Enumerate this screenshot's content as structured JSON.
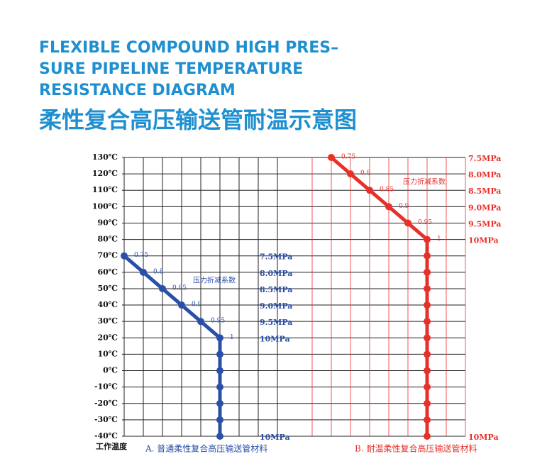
{
  "title_en": [
    "FLEXIBLE COMPOUND HIGH PRES–",
    "SURE PIPELINE TEMPERATURE",
    "RESISTANCE DIAGRAM"
  ],
  "title_cn": "柔性复合高压输送管耐温示意图",
  "chart_data": [
    {
      "type": "line",
      "color": "#2a4fa8",
      "ylabel": "工作温度",
      "caption": "A. 普通柔性复合高压输送管材料",
      "annotation": "压力折减系数",
      "ylim": [
        -40,
        130
      ],
      "xlim": [
        0,
        8
      ],
      "xticks": [
        0,
        1,
        2,
        3,
        4,
        5,
        6,
        7,
        8
      ],
      "yticks": [
        {
          "value": 130,
          "label": "130℃"
        },
        {
          "value": 120,
          "label": "120℃"
        },
        {
          "value": 110,
          "label": "110℃"
        },
        {
          "value": 100,
          "label": "100℃"
        },
        {
          "value": 90,
          "label": "90℃"
        },
        {
          "value": 80,
          "label": "80℃"
        },
        {
          "value": 70,
          "label": "70℃"
        },
        {
          "value": 60,
          "label": "60℃"
        },
        {
          "value": 50,
          "label": "50℃"
        },
        {
          "value": 40,
          "label": "40℃"
        },
        {
          "value": 30,
          "label": "30℃"
        },
        {
          "value": 20,
          "label": "20℃"
        },
        {
          "value": 10,
          "label": "10℃"
        },
        {
          "value": 0,
          "label": "0℃"
        },
        {
          "value": -10,
          "label": "-10℃"
        },
        {
          "value": -20,
          "label": "-20℃"
        },
        {
          "value": -30,
          "label": "-30℃"
        },
        {
          "value": -40,
          "label": "-40℃"
        }
      ],
      "x": [
        0,
        1,
        2,
        3,
        4,
        5,
        5,
        5,
        5,
        5,
        5,
        5
      ],
      "values": [
        70,
        60,
        50,
        40,
        30,
        20,
        10,
        0,
        -10,
        -20,
        -30,
        -40
      ],
      "point_labels": [
        "0.75",
        "0.8",
        "0.85",
        "0.9",
        "0.95",
        "1",
        null,
        null,
        null,
        null,
        null,
        null
      ],
      "pressure_labels": [
        {
          "y": 70,
          "label": "7.5MPa"
        },
        {
          "y": 60,
          "label": "8.0MPa"
        },
        {
          "y": 50,
          "label": "8.5MPa"
        },
        {
          "y": 40,
          "label": "9.0MPa"
        },
        {
          "y": 30,
          "label": "9.5MPa"
        },
        {
          "y": 20,
          "label": "10MPa"
        },
        {
          "y": -40,
          "label": "10MPa"
        }
      ]
    },
    {
      "type": "line",
      "color": "#e8302a",
      "caption": "B. 耐温柔性复合高压输送管材料",
      "annotation": "压力折减系数",
      "ylim": [
        -40,
        130
      ],
      "xlim": [
        0,
        8
      ],
      "xticks": [
        0,
        1,
        2,
        3,
        4,
        5,
        6,
        7,
        8
      ],
      "x": [
        1,
        2,
        3,
        4,
        5,
        6,
        6,
        6,
        6,
        6,
        6,
        6,
        6,
        6,
        6,
        6,
        6,
        6
      ],
      "values": [
        130,
        120,
        110,
        100,
        90,
        80,
        70,
        60,
        50,
        40,
        30,
        20,
        10,
        0,
        -10,
        -20,
        -30,
        -40
      ],
      "point_labels": [
        "0.75",
        "0.8",
        "0.85",
        "0.9",
        "0.95",
        "1",
        null,
        null,
        null,
        null,
        null,
        null,
        null,
        null,
        null,
        null,
        null,
        null
      ],
      "pressure_labels": [
        {
          "y": 130,
          "label": "7.5MPa"
        },
        {
          "y": 120,
          "label": "8.0MPa"
        },
        {
          "y": 110,
          "label": "8.5MPa"
        },
        {
          "y": 100,
          "label": "9.0MPa"
        },
        {
          "y": 90,
          "label": "9.5MPa"
        },
        {
          "y": 80,
          "label": "10MPa"
        },
        {
          "y": -40,
          "label": "10MPa"
        }
      ]
    }
  ]
}
